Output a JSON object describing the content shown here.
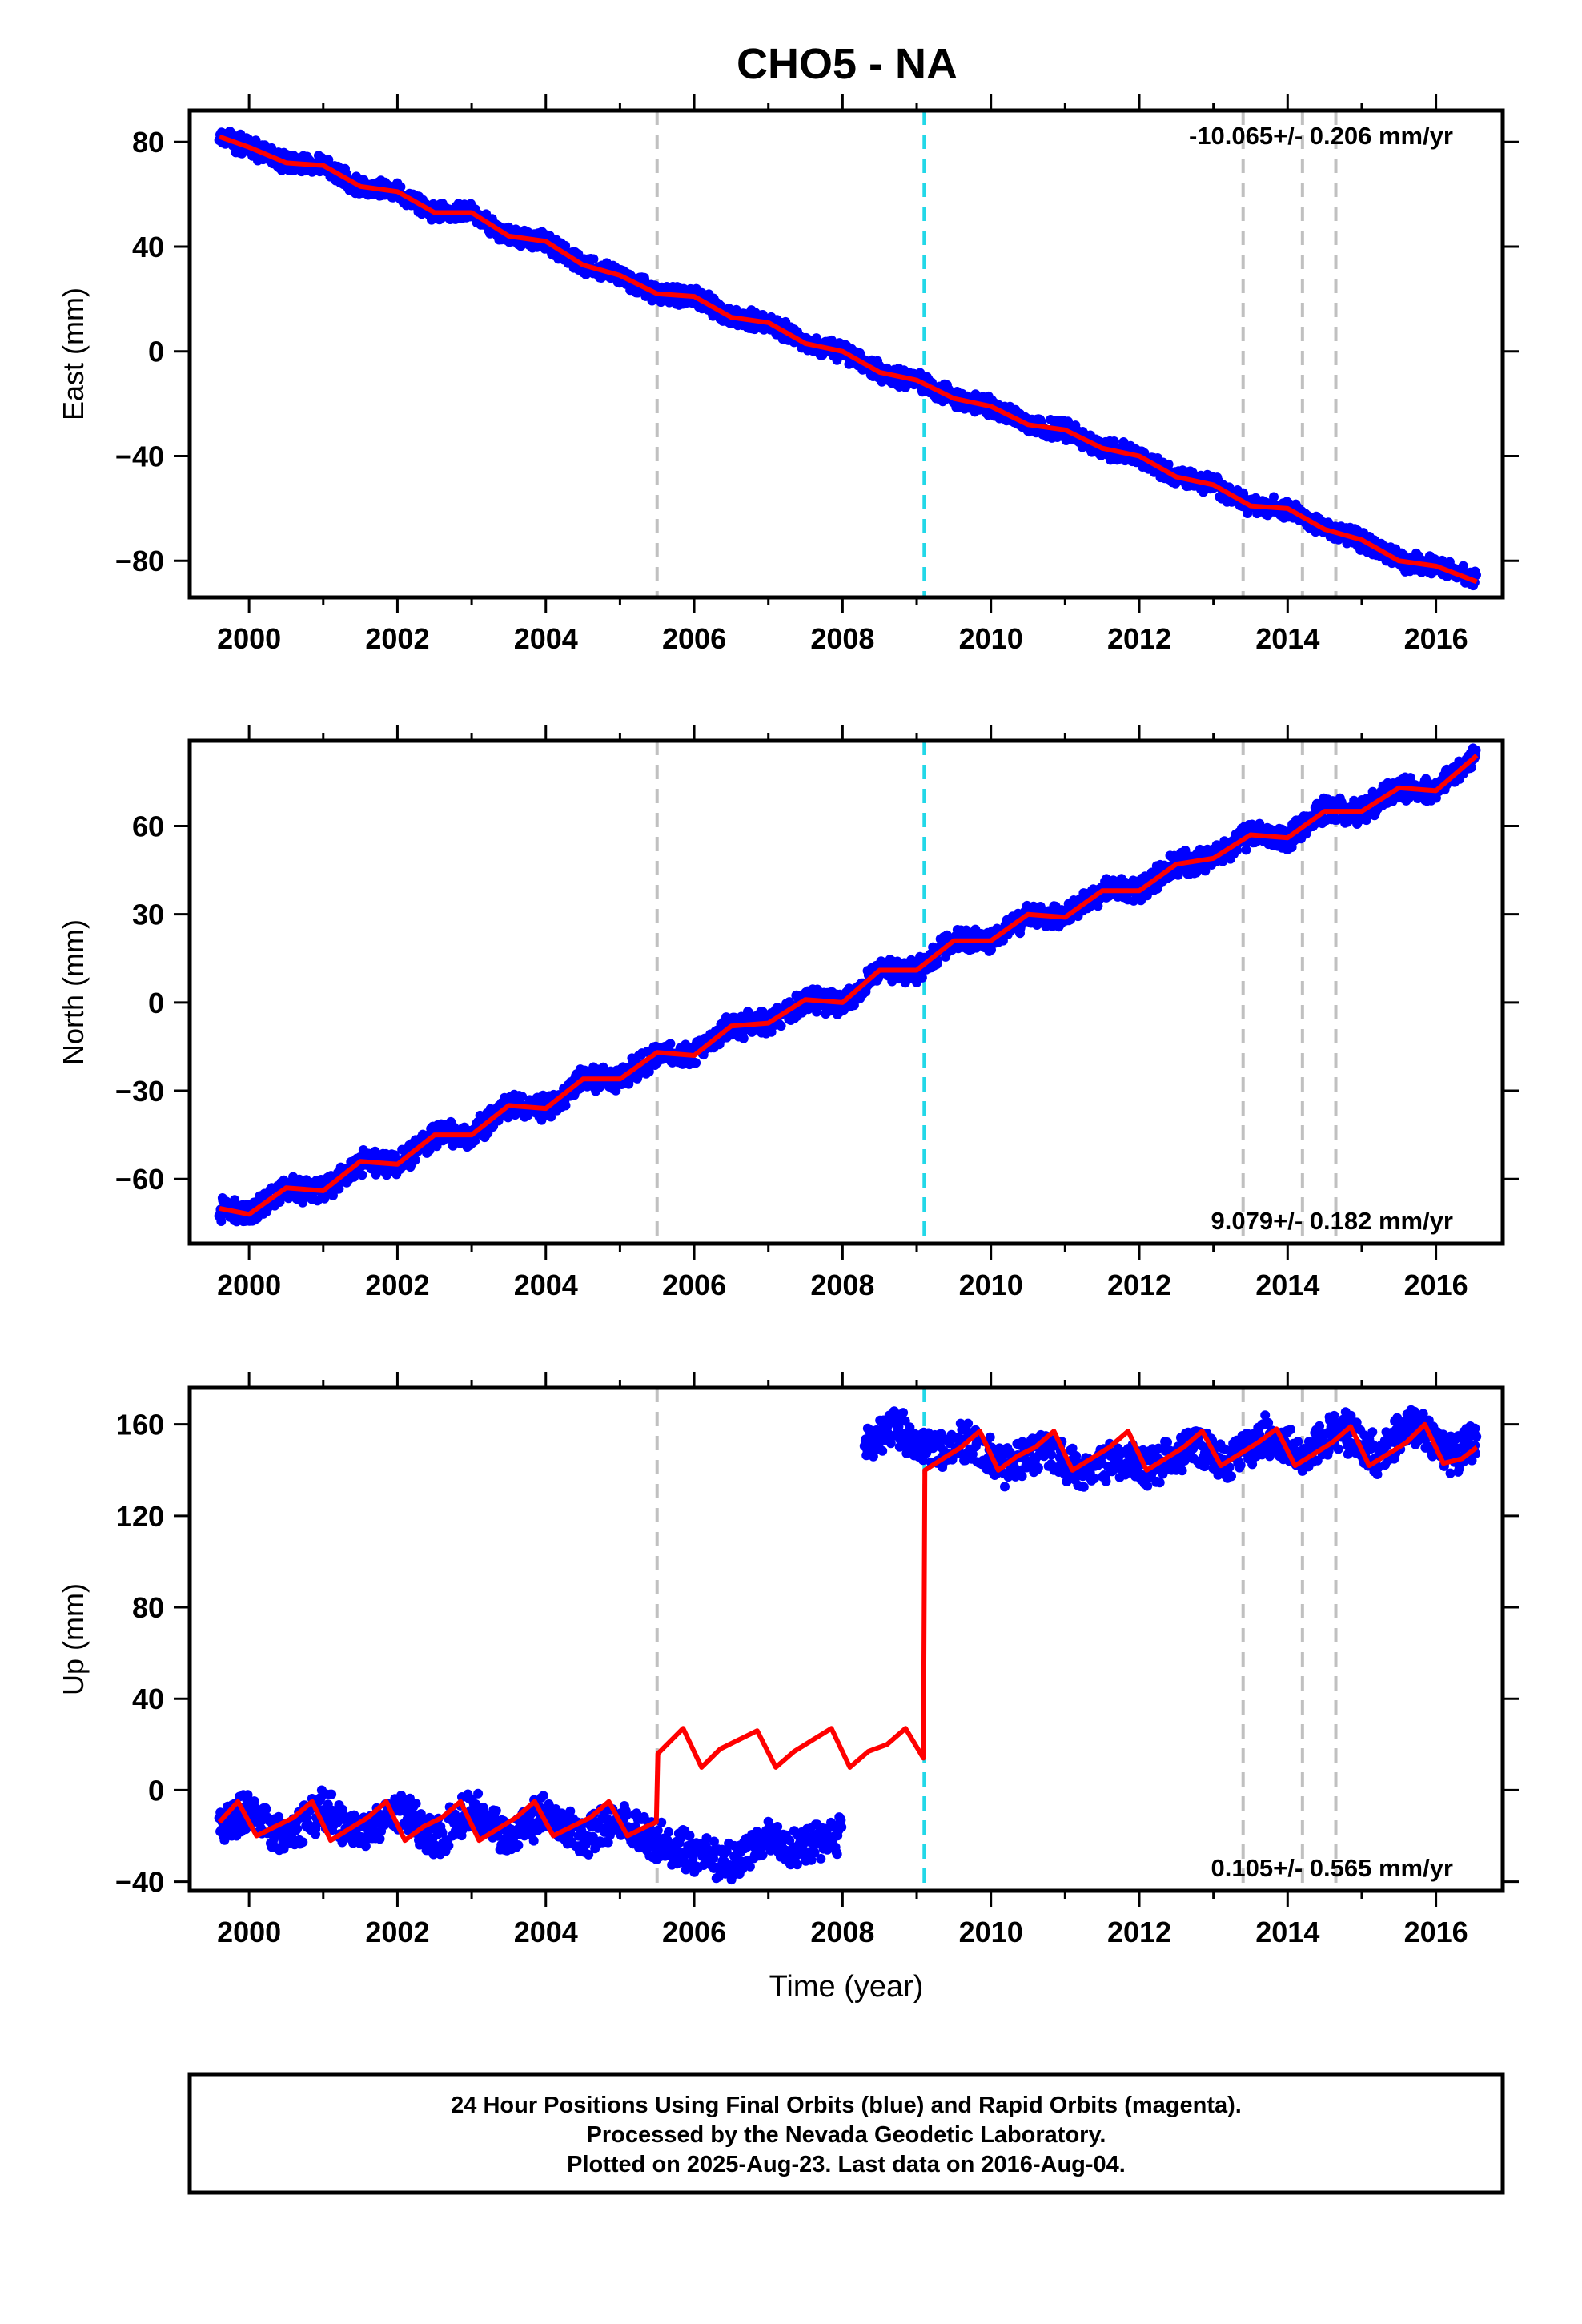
{
  "title": "CHO5 - NA",
  "colors": {
    "final_orbits": "#0000ff",
    "model": "#ff0000",
    "steps": "#c0c0c0",
    "antenna_change": "#22d8e8"
  },
  "footer": {
    "line1": "24 Hour Positions Using Final Orbits (blue) and Rapid Orbits (magenta).",
    "line2": "Processed by the Nevada Geodetic Laboratory.",
    "line3": "Plotted on 2025-Aug-23. Last data on 2016-Aug-04."
  },
  "chart_data": [
    {
      "type": "scatter",
      "ylabel": "East (mm)",
      "xlabel": "",
      "rate_label": "-10.065+/- 0.206 mm/yr",
      "rate_position": "top-right",
      "xlim": [
        1999.2,
        2016.9
      ],
      "ylim": [
        -94,
        92
      ],
      "xticks": [
        2000,
        2002,
        2004,
        2006,
        2008,
        2010,
        2012,
        2014,
        2016
      ],
      "yticks": [
        -80,
        -40,
        0,
        40,
        80
      ],
      "ytick_labels": [
        "−80",
        "−40",
        "0",
        "40",
        "80"
      ],
      "vertical_lines": [
        {
          "x": 2005.5,
          "color": "#c0c0c0"
        },
        {
          "x": 2009.1,
          "color": "#22d8e8"
        },
        {
          "x": 2013.4,
          "color": "#c0c0c0"
        },
        {
          "x": 2014.2,
          "color": "#c0c0c0"
        },
        {
          "x": 2014.65,
          "color": "#c0c0c0"
        }
      ],
      "series": [
        {
          "kind": "points",
          "color": "#0000ff",
          "x": [
            1999.6,
            2000.0,
            2000.5,
            2001.0,
            2001.5,
            2002.0,
            2002.5,
            2003.0,
            2003.5,
            2004.0,
            2004.5,
            2005.0,
            2005.5,
            2006.0,
            2006.5,
            2007.0,
            2007.5,
            2008.0,
            2008.5,
            2009.0,
            2009.5,
            2010.0,
            2010.5,
            2011.0,
            2011.5,
            2012.0,
            2012.5,
            2013.0,
            2013.5,
            2014.0,
            2014.5,
            2015.0,
            2015.5,
            2016.0,
            2016.55
          ],
          "y": [
            82,
            78,
            72,
            71,
            63,
            61,
            53,
            53,
            44,
            42,
            33,
            29,
            22,
            21,
            13,
            11,
            3,
            0,
            -8,
            -11,
            -18,
            -21,
            -28,
            -30,
            -37,
            -40,
            -48,
            -51,
            -59,
            -60,
            -68,
            -72,
            -80,
            -82,
            -88
          ]
        },
        {
          "kind": "line",
          "color": "#ff0000",
          "x": [
            1999.6,
            2000.0,
            2000.5,
            2001.0,
            2001.5,
            2002.0,
            2002.5,
            2003.0,
            2003.5,
            2004.0,
            2004.5,
            2005.0,
            2005.5,
            2006.0,
            2006.5,
            2007.0,
            2007.5,
            2008.0,
            2008.5,
            2009.0,
            2009.5,
            2010.0,
            2010.5,
            2011.0,
            2011.5,
            2012.0,
            2012.5,
            2013.0,
            2013.5,
            2014.0,
            2014.5,
            2015.0,
            2015.5,
            2016.0,
            2016.55
          ],
          "y": [
            82,
            78,
            72,
            71,
            63,
            61,
            53,
            53,
            44,
            42,
            33,
            29,
            22,
            21,
            13,
            11,
            3,
            0,
            -8,
            -11,
            -18,
            -21,
            -28,
            -30,
            -37,
            -40,
            -48,
            -51,
            -59,
            -60,
            -68,
            -72,
            -80,
            -82,
            -88
          ]
        }
      ]
    },
    {
      "type": "scatter",
      "ylabel": "North (mm)",
      "xlabel": "",
      "rate_label": "9.079+/- 0.182 mm/yr",
      "rate_position": "bottom-right",
      "xlim": [
        1999.2,
        2016.9
      ],
      "ylim": [
        -82,
        89
      ],
      "xticks": [
        2000,
        2002,
        2004,
        2006,
        2008,
        2010,
        2012,
        2014,
        2016
      ],
      "yticks": [
        -60,
        -30,
        0,
        30,
        60
      ],
      "ytick_labels": [
        "−60",
        "−30",
        "0",
        "30",
        "60"
      ],
      "vertical_lines": [
        {
          "x": 2005.5,
          "color": "#c0c0c0"
        },
        {
          "x": 2009.1,
          "color": "#22d8e8"
        },
        {
          "x": 2013.4,
          "color": "#c0c0c0"
        },
        {
          "x": 2014.2,
          "color": "#c0c0c0"
        },
        {
          "x": 2014.65,
          "color": "#c0c0c0"
        }
      ],
      "series": [
        {
          "kind": "points",
          "color": "#0000ff",
          "x": [
            1999.6,
            2000.0,
            2000.5,
            2001.0,
            2001.5,
            2002.0,
            2002.5,
            2003.0,
            2003.5,
            2004.0,
            2004.5,
            2005.0,
            2005.5,
            2006.0,
            2006.5,
            2007.0,
            2007.5,
            2008.0,
            2008.5,
            2009.0,
            2009.5,
            2010.0,
            2010.5,
            2011.0,
            2011.5,
            2012.0,
            2012.5,
            2013.0,
            2013.5,
            2014.0,
            2014.5,
            2015.0,
            2015.5,
            2016.0,
            2016.55
          ],
          "y": [
            -70,
            -72,
            -63,
            -64,
            -54,
            -55,
            -45,
            -45,
            -35,
            -36,
            -26,
            -26,
            -17,
            -18,
            -8,
            -7,
            1,
            0,
            11,
            11,
            21,
            21,
            30,
            29,
            38,
            38,
            47,
            49,
            57,
            56,
            65,
            65,
            73,
            72,
            84
          ]
        },
        {
          "kind": "line",
          "color": "#ff0000",
          "x": [
            1999.6,
            2000.0,
            2000.5,
            2001.0,
            2001.5,
            2002.0,
            2002.5,
            2003.0,
            2003.5,
            2004.0,
            2004.5,
            2005.0,
            2005.5,
            2006.0,
            2006.5,
            2007.0,
            2007.5,
            2008.0,
            2008.5,
            2009.0,
            2009.5,
            2010.0,
            2010.5,
            2011.0,
            2011.5,
            2012.0,
            2012.5,
            2013.0,
            2013.5,
            2014.0,
            2014.5,
            2015.0,
            2015.5,
            2016.0,
            2016.55
          ],
          "y": [
            -70,
            -72,
            -63,
            -64,
            -54,
            -55,
            -45,
            -45,
            -35,
            -36,
            -26,
            -26,
            -17,
            -18,
            -8,
            -7,
            1,
            0,
            11,
            11,
            21,
            21,
            30,
            29,
            38,
            38,
            47,
            49,
            57,
            56,
            65,
            65,
            73,
            72,
            84
          ]
        }
      ]
    },
    {
      "type": "scatter",
      "ylabel": "Up (mm)",
      "xlabel": "Time (year)",
      "rate_label": "0.105+/- 0.565 mm/yr",
      "rate_position": "bottom-right",
      "xlim": [
        1999.2,
        2016.9
      ],
      "ylim": [
        -44,
        176
      ],
      "xticks": [
        2000,
        2002,
        2004,
        2006,
        2008,
        2010,
        2012,
        2014,
        2016
      ],
      "yticks": [
        -40,
        0,
        40,
        80,
        120,
        160
      ],
      "ytick_labels": [
        "−40",
        "0",
        "40",
        "80",
        "120",
        "160"
      ],
      "vertical_lines": [
        {
          "x": 2005.5,
          "color": "#c0c0c0"
        },
        {
          "x": 2009.1,
          "color": "#22d8e8"
        },
        {
          "x": 2013.4,
          "color": "#c0c0c0"
        },
        {
          "x": 2014.2,
          "color": "#c0c0c0"
        },
        {
          "x": 2014.65,
          "color": "#c0c0c0"
        }
      ],
      "series": [
        {
          "kind": "points",
          "color": "#0000ff",
          "x": [
            1999.6,
            2000.0,
            2000.5,
            2001.0,
            2001.5,
            2002.0,
            2002.5,
            2003.0,
            2003.5,
            2004.0,
            2004.5,
            2005.0,
            2005.5,
            2006.0,
            2006.5,
            2007.0,
            2007.5,
            2008.0,
            2008.3,
            2008.7,
            2009.2,
            2009.7,
            2010.2,
            2010.7,
            2011.2,
            2011.7,
            2012.2,
            2012.7,
            2013.2,
            2013.7,
            2014.2,
            2014.7,
            2015.2,
            2015.7,
            2016.2,
            2016.55
          ],
          "y": [
            -15,
            -10,
            -22,
            -8,
            -20,
            -8,
            -22,
            -7,
            -20,
            -10,
            -22,
            -12,
            -22,
            -28,
            -32,
            -22,
            -26,
            -18,
            150,
            160,
            148,
            152,
            142,
            150,
            138,
            146,
            140,
            152,
            142,
            156,
            146,
            158,
            146,
            160,
            146,
            152
          ]
        },
        {
          "kind": "line",
          "color": "#ff0000",
          "x": [
            1999.6,
            1999.85,
            2000.1,
            2000.35,
            2000.6,
            2000.85,
            2001.1,
            2001.35,
            2001.6,
            2001.85,
            2002.1,
            2002.35,
            2002.6,
            2002.85,
            2003.1,
            2003.35,
            2003.6,
            2003.85,
            2004.1,
            2004.35,
            2004.6,
            2004.85,
            2005.1,
            2005.35,
            2005.49,
            2005.51,
            2005.85,
            2006.1,
            2006.35,
            2006.6,
            2006.85,
            2007.1,
            2007.35,
            2007.6,
            2007.85,
            2008.1,
            2008.35,
            2008.6,
            2008.85,
            2009.09,
            2009.11,
            2009.35,
            2009.6,
            2009.85,
            2010.1,
            2010.35,
            2010.6,
            2010.85,
            2011.1,
            2011.35,
            2011.6,
            2011.85,
            2012.1,
            2012.35,
            2012.6,
            2012.85,
            2013.1,
            2013.35,
            2013.6,
            2013.85,
            2014.1,
            2014.35,
            2014.6,
            2014.85,
            2015.1,
            2015.35,
            2015.6,
            2015.85,
            2016.1,
            2016.35,
            2016.55
          ],
          "y": [
            -14,
            -5,
            -20,
            -16,
            -12,
            -5,
            -22,
            -17,
            -12,
            -5,
            -22,
            -16,
            -12,
            -5,
            -22,
            -17,
            -12,
            -5,
            -20,
            -16,
            -12,
            -5,
            -20,
            -16,
            -14,
            16,
            27,
            10,
            18,
            22,
            26,
            10,
            17,
            22,
            27,
            10,
            17,
            20,
            27,
            14,
            140,
            145,
            150,
            157,
            140,
            146,
            150,
            157,
            140,
            145,
            150,
            157,
            140,
            145,
            150,
            157,
            142,
            147,
            152,
            158,
            142,
            147,
            152,
            159,
            142,
            147,
            152,
            160,
            143,
            145,
            150
          ]
        }
      ]
    }
  ]
}
